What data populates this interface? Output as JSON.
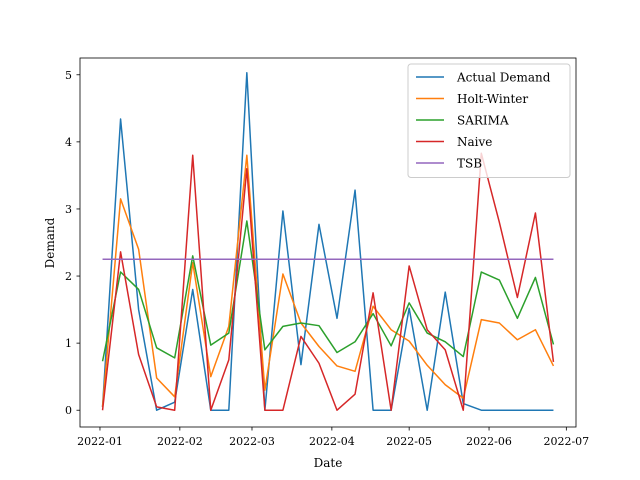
{
  "chart_data": {
    "type": "line",
    "title": "",
    "xlabel": "Date",
    "ylabel": "Demand",
    "x": [
      "2022-01-02",
      "2022-01-09",
      "2022-01-16",
      "2022-01-23",
      "2022-01-30",
      "2022-02-06",
      "2022-02-13",
      "2022-02-20",
      "2022-02-27",
      "2022-03-06",
      "2022-03-13",
      "2022-03-20",
      "2022-03-27",
      "2022-04-03",
      "2022-04-10",
      "2022-04-17",
      "2022-04-24",
      "2022-05-01",
      "2022-05-08",
      "2022-05-15",
      "2022-05-22",
      "2022-05-29",
      "2022-06-05",
      "2022-06-12",
      "2022-06-19",
      "2022-06-26"
    ],
    "xlim": [
      "2022-01-02",
      "2022-06-26"
    ],
    "ylim": [
      -0.25,
      5.25
    ],
    "x_ticks": [
      {
        "date": "2022-01-01",
        "label": "2022-01"
      },
      {
        "date": "2022-02-01",
        "label": "2022-02"
      },
      {
        "date": "2022-03-01",
        "label": "2022-03"
      },
      {
        "date": "2022-04-01",
        "label": "2022-04"
      },
      {
        "date": "2022-05-01",
        "label": "2022-05"
      },
      {
        "date": "2022-06-01",
        "label": "2022-06"
      },
      {
        "date": "2022-07-01",
        "label": "2022-07"
      }
    ],
    "y_ticks": [
      {
        "value": 0,
        "label": "0"
      },
      {
        "value": 1,
        "label": "1"
      },
      {
        "value": 2,
        "label": "2"
      },
      {
        "value": 3,
        "label": "3"
      },
      {
        "value": 4,
        "label": "4"
      },
      {
        "value": 5,
        "label": "5"
      }
    ],
    "grid": false,
    "legend_position": "top-right",
    "series": [
      {
        "name": "Actual Demand",
        "color": "#1f77b4",
        "values": [
          0.05,
          4.34,
          1.5,
          0.0,
          0.12,
          1.8,
          0.0,
          0.0,
          5.03,
          0.0,
          2.97,
          0.68,
          2.77,
          1.37,
          3.28,
          0.0,
          0.0,
          1.52,
          0.0,
          1.76,
          0.1,
          0.0,
          0.0,
          0.0,
          0.0,
          0.0
        ]
      },
      {
        "name": "Holt-Winter",
        "color": "#ff7f0e",
        "values": [
          0.05,
          3.15,
          2.4,
          0.48,
          0.2,
          2.2,
          0.5,
          1.25,
          3.8,
          0.3,
          2.03,
          1.3,
          0.95,
          0.66,
          0.58,
          1.55,
          1.2,
          1.03,
          0.67,
          0.38,
          0.18,
          1.35,
          1.3,
          1.05,
          1.2,
          0.66
        ]
      },
      {
        "name": "SARIMA",
        "color": "#2ca02c",
        "values": [
          0.73,
          2.06,
          1.8,
          0.93,
          0.78,
          2.3,
          0.97,
          1.15,
          2.82,
          0.9,
          1.25,
          1.3,
          1.26,
          0.86,
          1.02,
          1.44,
          0.96,
          1.6,
          1.15,
          1.02,
          0.8,
          2.06,
          1.94,
          1.37,
          1.98,
          0.98
        ]
      },
      {
        "name": "Naive",
        "color": "#d62728",
        "values": [
          0.0,
          2.36,
          0.83,
          0.05,
          0.0,
          3.8,
          0.0,
          0.75,
          3.6,
          0.0,
          0.0,
          1.1,
          0.7,
          0.0,
          0.24,
          1.75,
          0.0,
          2.15,
          1.2,
          0.9,
          0.0,
          3.83,
          2.8,
          1.68,
          2.94,
          0.72
        ]
      },
      {
        "name": "TSB",
        "color": "#9467bd",
        "values": [
          2.25,
          2.25,
          2.25,
          2.25,
          2.25,
          2.25,
          2.25,
          2.25,
          2.25,
          2.25,
          2.25,
          2.25,
          2.25,
          2.25,
          2.25,
          2.25,
          2.25,
          2.25,
          2.25,
          2.25,
          2.25,
          2.25,
          2.25,
          2.25,
          2.25,
          2.25
        ]
      }
    ]
  }
}
